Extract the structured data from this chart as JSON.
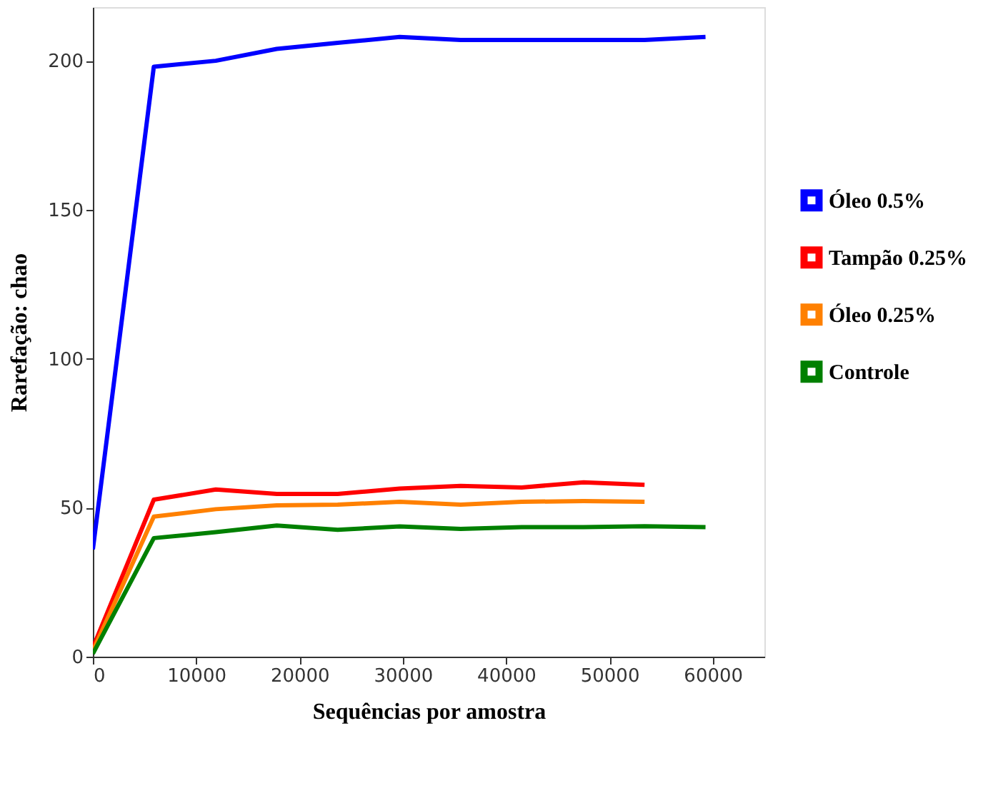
{
  "chart_data": {
    "type": "line",
    "xlabel": "Sequências por amostra",
    "ylabel": "Rarefação: chao",
    "xlim": [
      0,
      65000
    ],
    "xticks": [
      0,
      10000,
      20000,
      30000,
      40000,
      50000,
      60000
    ],
    "ylim": [
      0,
      218
    ],
    "yticks": [
      0,
      50,
      100,
      150,
      200
    ],
    "grid": false,
    "legend": "right",
    "line_style": "solid",
    "marker": "none",
    "series": [
      {
        "name": "Óleo 0.5%",
        "color": "#0000ff",
        "x": [
          0,
          5900,
          11900,
          17800,
          23700,
          29700,
          35600,
          41500,
          47500,
          53400,
          59300
        ],
        "values": [
          36,
          198,
          200,
          204,
          206,
          208,
          207,
          207,
          207,
          207,
          208
        ]
      },
      {
        "name": "Tampão 0.25%",
        "color": "#ff0000",
        "x": [
          0,
          5900,
          11900,
          17800,
          23700,
          29700,
          35600,
          41500,
          47500,
          53400
        ],
        "values": [
          3,
          52.7,
          56.1,
          54.6,
          54.6,
          56.4,
          57.3,
          56.8,
          58.5,
          57.7
        ]
      },
      {
        "name": "Óleo 0.25%",
        "color": "#ff8000",
        "x": [
          0,
          5900,
          11900,
          17800,
          23700,
          29700,
          35600,
          41500,
          47500,
          53400
        ],
        "values": [
          2,
          47,
          49.5,
          50.8,
          51,
          52,
          51,
          52,
          52.2,
          52
        ]
      },
      {
        "name": "Controle",
        "color": "#008000",
        "x": [
          0,
          5900,
          11900,
          17800,
          23700,
          29700,
          35600,
          41500,
          47500,
          53400,
          59300
        ],
        "values": [
          1,
          39.8,
          41.8,
          44,
          42.6,
          43.7,
          42.9,
          43.5,
          43.5,
          43.8,
          43.5
        ]
      }
    ]
  }
}
